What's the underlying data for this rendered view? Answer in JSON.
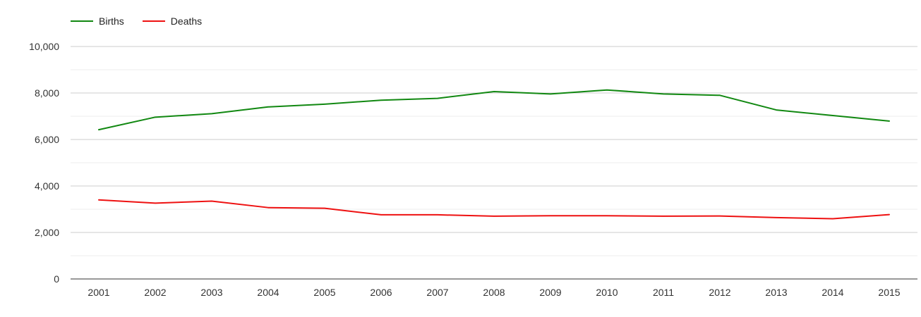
{
  "chart_data": {
    "type": "line",
    "categories": [
      "2001",
      "2002",
      "2003",
      "2004",
      "2005",
      "2006",
      "2007",
      "2008",
      "2009",
      "2010",
      "2011",
      "2012",
      "2013",
      "2014",
      "2015"
    ],
    "ylim": [
      0,
      10000
    ],
    "yticks": [
      0,
      2000,
      4000,
      6000,
      8000,
      10000
    ],
    "ytick_labels": [
      "0",
      "2,000",
      "4,000",
      "6,000",
      "8,000",
      "10,000"
    ],
    "grid": true,
    "legend_position": "top-left",
    "series": [
      {
        "name": "Births",
        "color": "#118811",
        "values": [
          6420,
          6960,
          7110,
          7400,
          7520,
          7690,
          7770,
          8060,
          7960,
          8130,
          7960,
          7900,
          7270,
          7030,
          6790
        ]
      },
      {
        "name": "Deaths",
        "color": "#ee1111",
        "values": [
          3400,
          3260,
          3350,
          3070,
          3040,
          2760,
          2760,
          2700,
          2720,
          2720,
          2700,
          2710,
          2640,
          2590,
          2770
        ]
      }
    ]
  }
}
